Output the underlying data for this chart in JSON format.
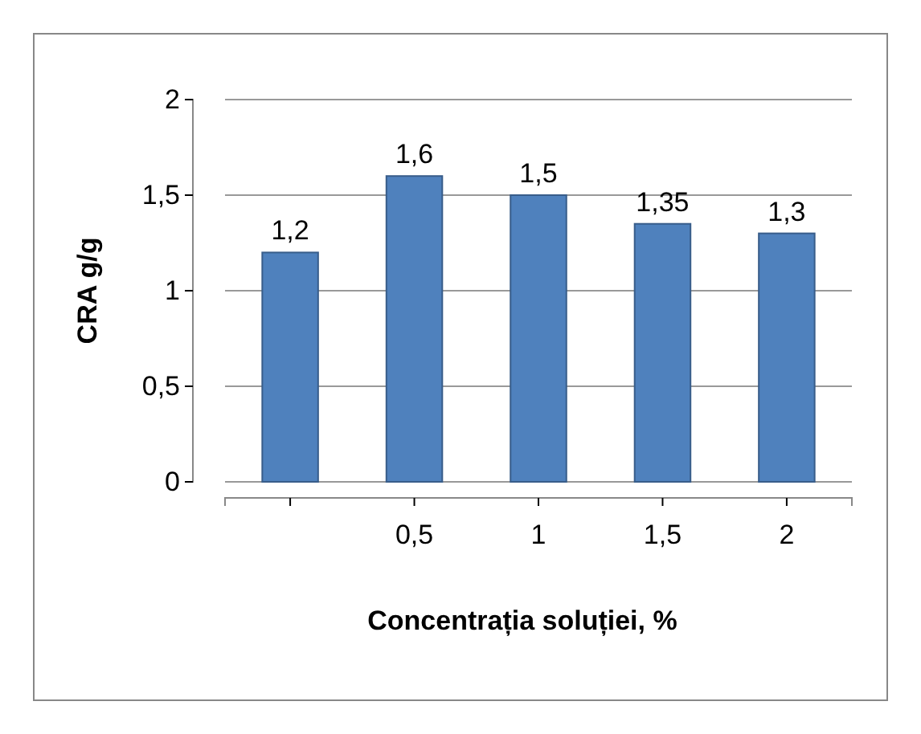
{
  "chart_data": {
    "type": "bar",
    "xlabel": "Concentrația soluției, %",
    "ylabel": "CRA g/g",
    "categories": [
      null,
      "0,5",
      "1",
      "1,5",
      "2"
    ],
    "values": [
      1.2,
      1.6,
      1.5,
      1.35,
      1.3
    ],
    "value_labels": [
      "1,2",
      "1,6",
      "1,5",
      "1,35",
      "1,3"
    ],
    "color": "#4f81bd",
    "ylim": [
      0,
      2
    ],
    "yticks": [
      0,
      {
        "value": 0.5,
        "label": "0,5"
      },
      1,
      {
        "value": 1.5,
        "label": "1,5"
      },
      2
    ],
    "grid": "y"
  }
}
